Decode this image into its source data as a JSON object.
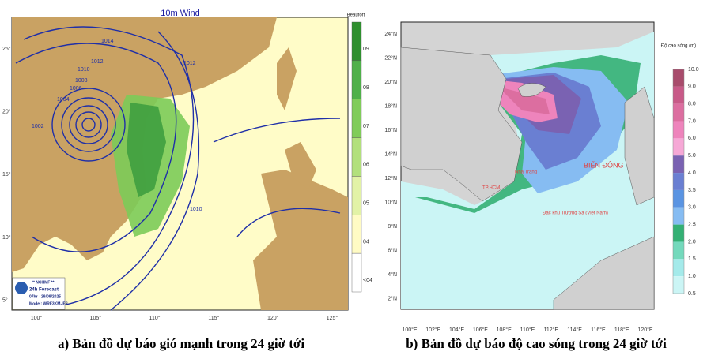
{
  "panel_a": {
    "title": "10m Wind",
    "colorbar_title": "Beaufort",
    "colorbar_labels": [
      "09",
      "08",
      "07",
      "06",
      "05",
      "04",
      "<04"
    ],
    "colorbar_colors": [
      "#2f8f2f",
      "#4fb04a",
      "#80cc5a",
      "#b2e07c",
      "#e2f2a6",
      "#fffbc4",
      "#ffffff"
    ],
    "lat_labels": [
      "25°",
      "20°",
      "15°",
      "10°",
      "5°"
    ],
    "lon_labels": [
      "100°",
      "105°",
      "110°",
      "115°",
      "120°",
      "125°"
    ],
    "isobar_labels": [
      "1014",
      "1012",
      "1010",
      "1008",
      "1006",
      "1004",
      "1002",
      "1012",
      "1010"
    ],
    "info": [
      "** NCHMF **",
      "24h Forecast",
      "07hr - 29/09/2025",
      "Model: WRF3KM-IFS"
    ],
    "caption": "a) Bản đồ dự báo gió mạnh trong 24 giờ tới"
  },
  "panel_b": {
    "colorbar_title": "Độ cao sóng (m)",
    "colorbar_labels": [
      "10.0",
      "9.0",
      "8.0",
      "7.0",
      "6.0",
      "5.0",
      "4.0",
      "3.5",
      "3.0",
      "2.5",
      "2.0",
      "1.5",
      "1.0",
      "0.5"
    ],
    "colorbar_colors": [
      "#a84c6c",
      "#c85a88",
      "#dc6ea0",
      "#ee84bc",
      "#f6a8d6",
      "#7a62b2",
      "#6a7fd2",
      "#5a94e2",
      "#86bcf2",
      "#34b074",
      "#74d9bc",
      "#a4eaea",
      "#cbf5f5"
    ],
    "lat_labels": [
      "24°N",
      "22°N",
      "20°N",
      "18°N",
      "16°N",
      "14°N",
      "12°N",
      "10°N",
      "8°N",
      "6°N",
      "4°N",
      "2°N"
    ],
    "lon_labels": [
      "100°E",
      "102°E",
      "104°E",
      "106°E",
      "108°E",
      "110°E",
      "112°E",
      "114°E",
      "116°E",
      "118°E",
      "120°E"
    ],
    "places": [
      "BIỂN ĐÔNG",
      "Đặc khu Trường Sa (Việt Nam)",
      "Nha Trang",
      "TP.HCM"
    ],
    "caption": "b) Bản đồ dự báo độ cao sóng trong 24 giờ tới"
  }
}
